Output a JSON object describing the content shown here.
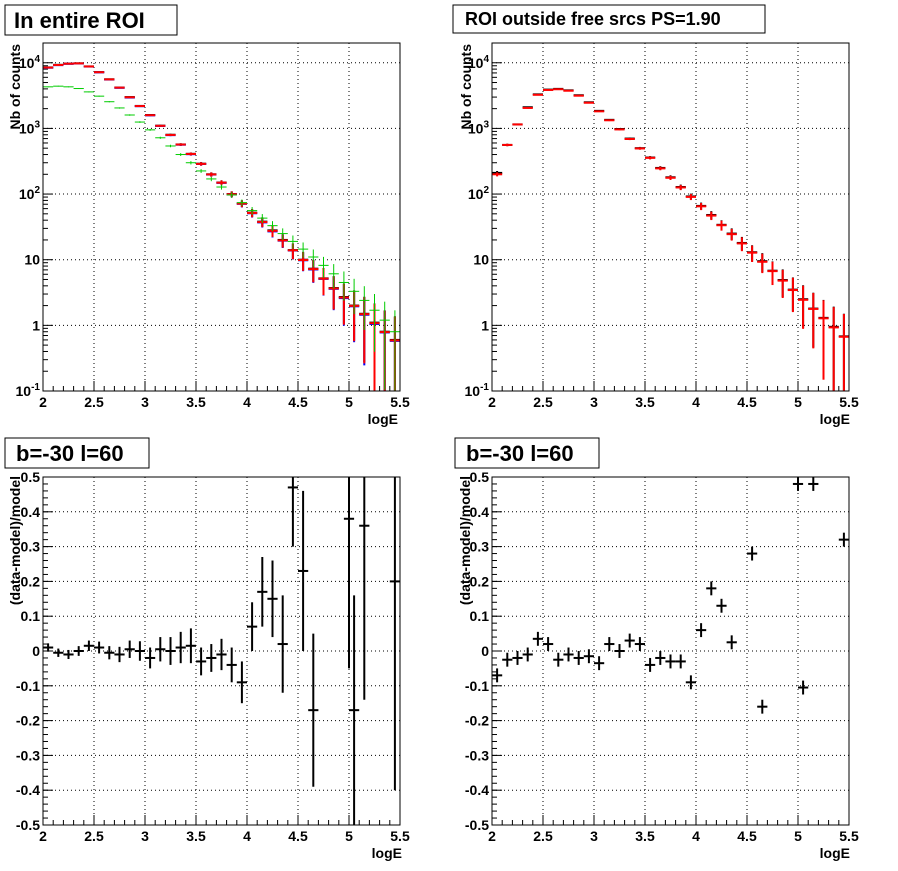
{
  "chart_data": [
    {
      "type": "scatter",
      "panel": "top-left",
      "title": "In entire ROI",
      "xlabel": "logE",
      "ylabel": "Nb of counts",
      "xlim": [
        2,
        5.5
      ],
      "ylim": [
        0.1,
        20000
      ],
      "yscale": "log",
      "grid": true,
      "x_ticks": [
        2,
        2.5,
        3,
        3.5,
        4,
        4.5,
        5,
        5.5
      ],
      "x_tick_labels": [
        "2",
        "2.5",
        "3",
        "3.5",
        "4",
        "4.5",
        "5",
        "5.5"
      ],
      "y_ticks": [
        0.1,
        1,
        10,
        100,
        1000,
        10000
      ],
      "y_tick_labels": [
        "10^-1",
        "1",
        "10",
        "10^2",
        "10^3",
        "10^4"
      ],
      "series": [
        {
          "color": "#000000",
          "x": [
            2.05,
            2.15,
            2.25,
            2.35,
            2.45,
            2.55,
            2.65,
            2.75,
            2.85,
            2.95,
            3.05,
            3.15,
            3.25,
            3.35,
            3.45,
            3.55,
            3.65,
            3.75,
            3.85,
            3.95,
            4.05,
            4.15,
            4.25,
            4.35,
            4.45,
            4.55,
            4.65,
            4.75,
            4.85,
            4.95,
            5.05,
            5.15,
            5.25,
            5.35,
            5.45
          ],
          "y": [
            8500,
            9300,
            9700,
            9800,
            8800,
            7200,
            5600,
            4200,
            3000,
            2200,
            1600,
            1100,
            800,
            570,
            410,
            290,
            200,
            150,
            100,
            72,
            52,
            38,
            28,
            20,
            14,
            10,
            7.3,
            5.2,
            3.7,
            2.7,
            2,
            1.5,
            1.1,
            0.8,
            0.6
          ]
        },
        {
          "color": "#0000ff",
          "x": [
            2.05,
            2.15,
            2.25,
            2.35,
            2.45,
            2.55,
            2.65,
            2.75,
            2.85,
            2.95,
            3.05,
            3.15,
            3.25,
            3.35,
            3.45,
            3.55,
            3.65,
            3.75,
            3.85,
            3.95,
            4.05,
            4.15,
            4.25,
            4.35,
            4.45,
            4.55,
            4.65,
            4.75,
            4.85,
            4.95,
            5.05,
            5.15,
            5.25,
            5.35,
            5.45
          ],
          "y": [
            8400,
            9200,
            9650,
            9750,
            8750,
            7150,
            5550,
            4150,
            2950,
            2180,
            1580,
            1090,
            790,
            565,
            405,
            287,
            198,
            148,
            99,
            71,
            51,
            37,
            27,
            19.5,
            13.8,
            9.8,
            7.1,
            5.1,
            3.6,
            2.6,
            1.95,
            1.45,
            1.05,
            0.78,
            0.58
          ]
        },
        {
          "color": "#ff0000",
          "x": [
            2.05,
            2.15,
            2.25,
            2.35,
            2.45,
            2.55,
            2.65,
            2.75,
            2.85,
            2.95,
            3.05,
            3.15,
            3.25,
            3.35,
            3.45,
            3.55,
            3.65,
            3.75,
            3.85,
            3.95,
            4.05,
            4.15,
            4.25,
            4.35,
            4.45,
            4.55,
            4.65,
            4.75,
            4.85,
            4.95,
            5.05,
            5.15,
            5.25,
            5.35,
            5.45
          ],
          "y": [
            8450,
            9250,
            9680,
            9780,
            8780,
            7180,
            5580,
            4180,
            2980,
            2190,
            1590,
            1095,
            795,
            568,
            408,
            288,
            199,
            149,
            99.5,
            71.5,
            51.5,
            37.5,
            27.5,
            19.7,
            13.9,
            9.9,
            7.2,
            5.15,
            3.65,
            2.65,
            1.98,
            1.48,
            1.08,
            0.79,
            0.59
          ]
        },
        {
          "color": "#00cc00",
          "x": [
            2.05,
            2.15,
            2.25,
            2.35,
            2.45,
            2.55,
            2.65,
            2.75,
            2.85,
            2.95,
            3.05,
            3.15,
            3.25,
            3.35,
            3.45,
            3.55,
            3.65,
            3.75,
            3.85,
            3.95,
            4.05,
            4.15,
            4.25,
            4.35,
            4.45,
            4.55,
            4.65,
            4.75,
            4.85,
            4.95,
            5.05,
            5.15,
            5.25,
            5.35,
            5.45
          ],
          "y": [
            4300,
            4400,
            4300,
            4050,
            3600,
            3100,
            2550,
            2050,
            1600,
            1250,
            950,
            720,
            540,
            400,
            300,
            225,
            170,
            128,
            97,
            74,
            56,
            43,
            33,
            25,
            19,
            14.5,
            11,
            8.2,
            6.1,
            4.5,
            3.3,
            2.4,
            1.7,
            1.2,
            0.8
          ]
        }
      ]
    },
    {
      "type": "scatter",
      "panel": "top-right",
      "title": "ROI outside free srcs PS=1.90",
      "xlabel": "logE",
      "ylabel": "Nb of counts",
      "xlim": [
        2,
        5.5
      ],
      "ylim": [
        0.1,
        20000
      ],
      "yscale": "log",
      "grid": true,
      "x_ticks": [
        2,
        2.5,
        3,
        3.5,
        4,
        4.5,
        5,
        5.5
      ],
      "x_tick_labels": [
        "2",
        "2.5",
        "3",
        "3.5",
        "4",
        "4.5",
        "5",
        "5.5"
      ],
      "y_ticks": [
        0.1,
        1,
        10,
        100,
        1000,
        10000
      ],
      "y_tick_labels": [
        "10^-1",
        "1",
        "10",
        "10^2",
        "10^3",
        "10^4"
      ],
      "series": [
        {
          "color": "#000000",
          "x": [
            2.05,
            2.15,
            2.25,
            2.35,
            2.45,
            2.55,
            2.65,
            2.75,
            2.85,
            2.95,
            3.05,
            3.15,
            3.25,
            3.35,
            3.45,
            3.55,
            3.65,
            3.75,
            3.85,
            3.95,
            4.05,
            4.15,
            4.25,
            4.35,
            4.45,
            4.55,
            4.65,
            4.75,
            4.85,
            4.95,
            5.05,
            5.15,
            5.25,
            5.35,
            5.45
          ],
          "y": [
            210,
            560,
            1150,
            2100,
            3300,
            3900,
            4000,
            3800,
            3200,
            2500,
            1850,
            1350,
            980,
            700,
            500,
            360,
            250,
            180,
            128,
            92,
            66,
            48,
            34,
            25,
            18,
            13,
            9.5,
            6.8,
            4.9,
            3.5,
            2.5,
            1.8,
            1.3,
            0.95,
            0.68
          ]
        },
        {
          "color": "#ff0000",
          "x": [
            2.05,
            2.15,
            2.25,
            2.35,
            2.45,
            2.55,
            2.65,
            2.75,
            2.85,
            2.95,
            3.05,
            3.15,
            3.25,
            3.35,
            3.45,
            3.55,
            3.65,
            3.75,
            3.85,
            3.95,
            4.05,
            4.15,
            4.25,
            4.35,
            4.45,
            4.55,
            4.65,
            4.75,
            4.85,
            4.95,
            5.05,
            5.15,
            5.25,
            5.35,
            5.45
          ],
          "y": [
            200,
            560,
            1150,
            2050,
            3250,
            3850,
            3950,
            3750,
            3150,
            2460,
            1820,
            1330,
            965,
            690,
            495,
            356,
            246,
            177,
            126,
            90.5,
            65,
            47,
            33.5,
            24.5,
            17.7,
            12.8,
            9.3,
            6.7,
            4.8,
            3.45,
            2.45,
            1.78,
            1.28,
            0.93,
            0.67
          ]
        }
      ]
    },
    {
      "type": "scatter",
      "panel": "bottom-left",
      "title": "b=-30 l=60",
      "xlabel": "logE",
      "ylabel": "(data-model)/model",
      "xlim": [
        2,
        5.5
      ],
      "ylim": [
        -0.5,
        0.5
      ],
      "grid": true,
      "x_ticks": [
        2,
        2.5,
        3,
        3.5,
        4,
        4.5,
        5,
        5.5
      ],
      "x_tick_labels": [
        "2",
        "2.5",
        "3",
        "3.5",
        "4",
        "4.5",
        "5",
        "5.5"
      ],
      "y_ticks": [
        -0.5,
        -0.4,
        -0.3,
        -0.2,
        -0.1,
        0,
        0.1,
        0.2,
        0.3,
        0.4,
        0.5
      ],
      "y_tick_labels": [
        "-0.5",
        "-0.4",
        "-0.3",
        "-0.2",
        "-0.1",
        "0",
        "0.1",
        "0.2",
        "0.3",
        "0.4",
        "0.5"
      ],
      "series": [
        {
          "color": "#000000",
          "x": [
            2.05,
            2.15,
            2.25,
            2.35,
            2.45,
            2.55,
            2.65,
            2.75,
            2.85,
            2.95,
            3.05,
            3.15,
            3.25,
            3.35,
            3.45,
            3.55,
            3.65,
            3.75,
            3.85,
            3.95,
            4.05,
            4.15,
            4.25,
            4.35,
            4.45,
            4.55,
            4.65,
            5.0,
            5.05,
            5.15,
            5.45
          ],
          "y": [
            0.01,
            -0.005,
            -0.01,
            0.0,
            0.015,
            0.01,
            -0.005,
            -0.01,
            0.005,
            0.0,
            -0.02,
            0.005,
            0.0,
            0.01,
            0.015,
            -0.03,
            -0.02,
            -0.01,
            -0.04,
            -0.09,
            0.07,
            0.17,
            0.15,
            0.02,
            0.47,
            0.23,
            -0.17,
            0.38,
            -0.17,
            0.36,
            0.2
          ],
          "yerr": [
            0.012,
            0.012,
            0.013,
            0.014,
            0.015,
            0.017,
            0.019,
            0.022,
            0.025,
            0.028,
            0.03,
            0.035,
            0.04,
            0.045,
            0.05,
            0.04,
            0.04,
            0.045,
            0.05,
            0.06,
            0.07,
            0.1,
            0.11,
            0.14,
            0.17,
            0.23,
            0.22,
            0.43,
            0.33,
            0.5,
            0.6
          ]
        }
      ]
    },
    {
      "type": "scatter",
      "panel": "bottom-right",
      "title": "b=-30 l=60",
      "xlabel": "logE",
      "ylabel": "(data-model)/model",
      "xlim": [
        2,
        5.5
      ],
      "ylim": [
        -0.5,
        0.5
      ],
      "grid": true,
      "x_ticks": [
        2,
        2.5,
        3,
        3.5,
        4,
        4.5,
        5,
        5.5
      ],
      "x_tick_labels": [
        "2",
        "2.5",
        "3",
        "3.5",
        "4",
        "4.5",
        "5",
        "5.5"
      ],
      "y_ticks": [
        -0.5,
        -0.4,
        -0.3,
        -0.2,
        -0.1,
        0,
        0.1,
        0.2,
        0.3,
        0.4,
        0.5
      ],
      "y_tick_labels": [
        "-0.5",
        "-0.4",
        "-0.3",
        "-0.2",
        "-0.1",
        "0",
        "0.1",
        "0.2",
        "0.3",
        "0.4",
        "0.5"
      ],
      "series": [
        {
          "color": "#000000",
          "x": [
            2.05,
            2.15,
            2.25,
            2.35,
            2.45,
            2.55,
            2.65,
            2.75,
            2.85,
            2.95,
            3.05,
            3.15,
            3.25,
            3.35,
            3.45,
            3.55,
            3.65,
            3.75,
            3.85,
            3.95,
            4.05,
            4.15,
            4.25,
            4.35,
            4.55,
            4.65,
            5.0,
            5.05,
            5.15,
            5.45
          ],
          "y": [
            -0.07,
            -0.025,
            -0.02,
            -0.01,
            0.035,
            0.02,
            -0.025,
            -0.01,
            -0.02,
            -0.015,
            -0.035,
            0.02,
            0.0,
            0.03,
            0.02,
            -0.04,
            -0.02,
            -0.03,
            -0.03,
            -0.09,
            0.06,
            0.18,
            0.13,
            0.025,
            0.28,
            -0.16,
            0.48,
            -0.105,
            0.48,
            0.32
          ]
        },
        {
          "color": "#000000",
          "x": [],
          "y": []
        }
      ]
    }
  ]
}
